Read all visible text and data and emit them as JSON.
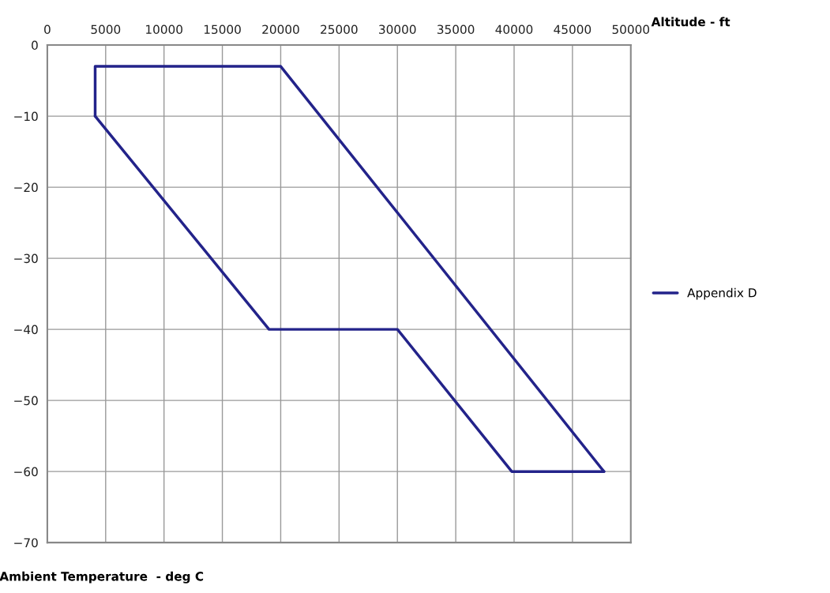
{
  "chart_data": {
    "type": "line",
    "xlabel": "Altitude - ft",
    "ylabel": "Ambient Temperature  - deg C",
    "series": [
      {
        "name": "Appendix D",
        "color": "#23238a",
        "x": [
          4100,
          4100,
          20000,
          47700
        ],
        "values": [
          -10,
          -3,
          -3,
          -60
        ]
      },
      {
        "color": "#23238a",
        "x": [
          4100,
          19000,
          30000,
          39800,
          47700
        ],
        "values": [
          -10,
          -40,
          -40,
          -60,
          -60
        ]
      }
    ],
    "xlim": [
      0,
      50000
    ],
    "xticks": [
      0,
      5000,
      10000,
      15000,
      20000,
      25000,
      30000,
      35000,
      40000,
      45000,
      50000
    ],
    "ylim": [
      -70,
      0
    ],
    "yticks": [
      -70,
      -60,
      -50,
      -40,
      -30,
      -20,
      -10,
      0
    ],
    "grid": true,
    "legend": "right",
    "marker": "none",
    "line_style": "solid"
  }
}
